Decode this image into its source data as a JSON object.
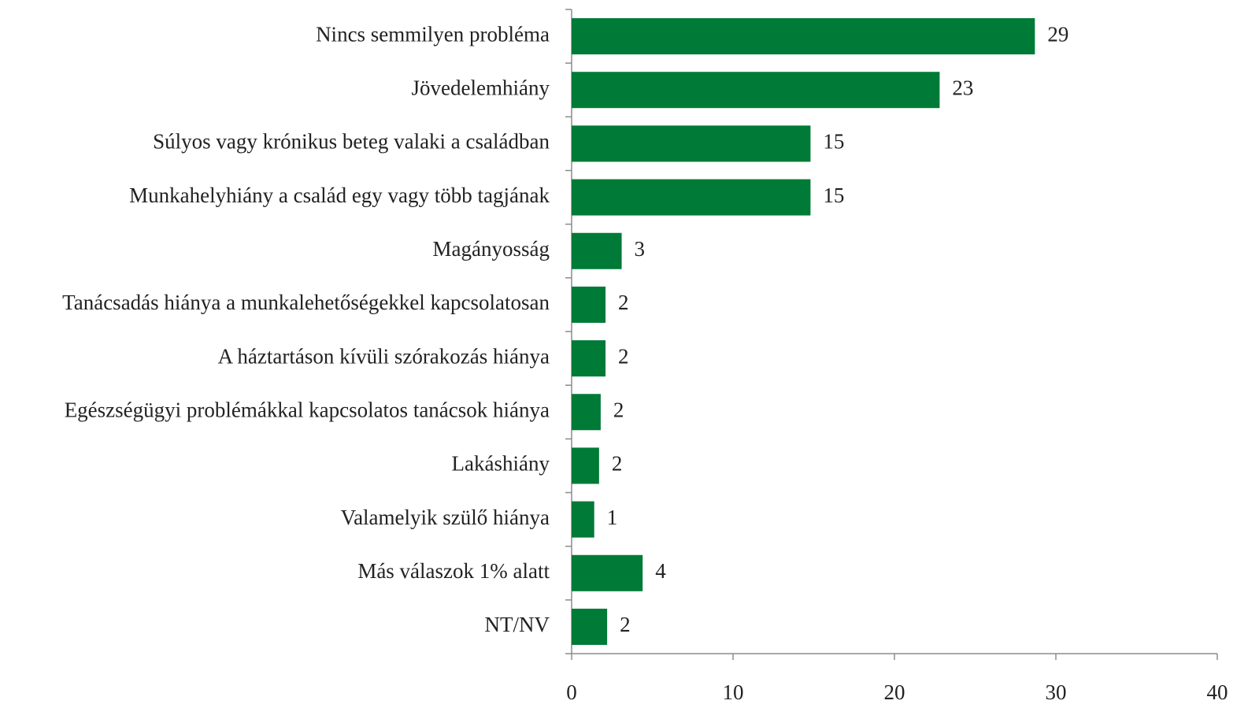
{
  "chart_data": {
    "type": "bar",
    "orientation": "horizontal",
    "categories": [
      "Nincs semmilyen probléma",
      "Jövedelemhiány",
      "Súlyos vagy krónikus beteg valaki a családban",
      "Munkahelyhiány a család egy vagy több tagjának",
      "Magányosság",
      "Tanácsadás hiánya a munkalehetőségekkel kapcsolatosan",
      "A háztartáson kívüli szórakozás hiánya",
      "Egészségügyi problémákkal kapcsolatos tanácsok hiánya",
      "Lakáshiány",
      "Valamelyik szülő hiánya",
      "Más válaszok 1% alatt",
      "NT/NV"
    ],
    "values": [
      28.7,
      22.8,
      14.8,
      14.8,
      3.1,
      2.1,
      2.1,
      1.8,
      1.7,
      1.4,
      4.4,
      2.2
    ],
    "value_labels": [
      "29",
      "23",
      "15",
      "15",
      "3",
      "2",
      "2",
      "2",
      "2",
      "1",
      "4",
      "2"
    ],
    "color": "#007a37",
    "xlim": [
      0,
      40
    ],
    "xticks": [
      0,
      10,
      20,
      30,
      40
    ],
    "grid": false
  }
}
